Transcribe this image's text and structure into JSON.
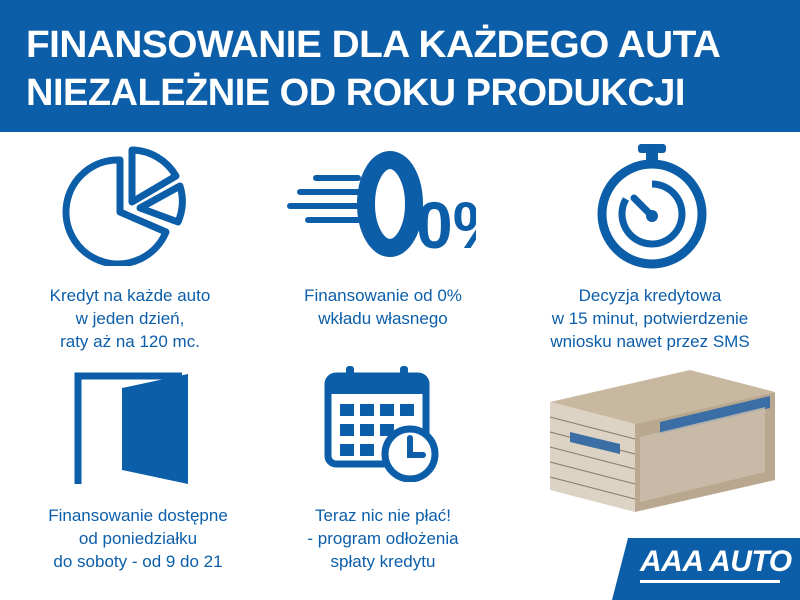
{
  "header": {
    "line1": "FINANSOWANIE DLA KAŻDEGO AUTA",
    "line2": "NIEZALEŻNIE OD ROKU PRODUKCJI"
  },
  "features": [
    {
      "icon": "pie-chart-icon",
      "lines": [
        "Kredyt na każde auto",
        "w jeden dzień,",
        "raty aż na 120 mc."
      ]
    },
    {
      "icon": "zero-percent-icon",
      "icon_text": "0%",
      "lines": [
        "Finansowanie od 0%",
        "wkładu własnego"
      ]
    },
    {
      "icon": "stopwatch-icon",
      "lines": [
        "Decyzja kredytowa",
        "w 15 minut, potwierdzenie",
        "wniosku nawet przez SMS"
      ]
    },
    {
      "icon": "door-icon",
      "lines": [
        "Finansowanie dostępne",
        "od poniedziałku",
        "do soboty - od 9 do 21"
      ]
    },
    {
      "icon": "calendar-clock-icon",
      "lines": [
        "Teraz nic nie płać!",
        "- program odłożenia",
        "spłaty kredytu"
      ]
    },
    {
      "icon": "money-stack-image"
    }
  ],
  "logo": {
    "text": "AAA AUTO"
  },
  "colors": {
    "brand_blue": "#0c5ea9",
    "background": "#ffffff"
  }
}
